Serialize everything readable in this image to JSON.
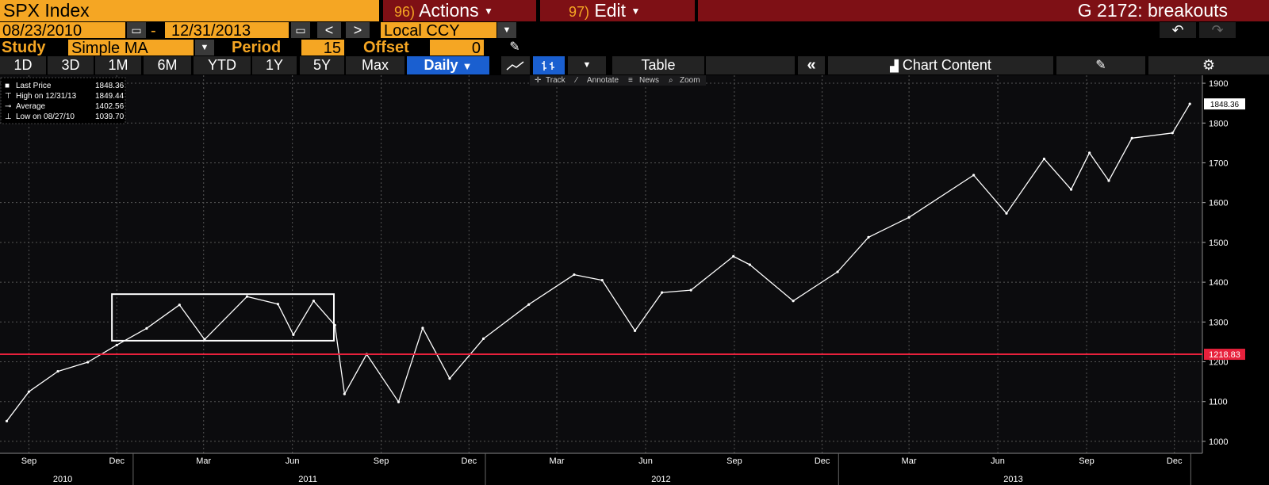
{
  "header": {
    "security": "SPX Index",
    "actions_num": "96)",
    "actions_label": "Actions",
    "edit_num": "97)",
    "edit_label": "Edit",
    "function_title": "G 2172: breakouts"
  },
  "range": {
    "start": "08/23/2010",
    "separator": "-",
    "end": "12/31/2013",
    "prev": "<",
    "next": ">",
    "currency": "Local CCY"
  },
  "study": {
    "label": "Study",
    "value": "Simple MA",
    "period_label": "Period",
    "period_value": "15",
    "offset_label": "Offset",
    "offset_value": "0"
  },
  "tabs": {
    "periods": [
      "1D",
      "3D",
      "1M",
      "6M",
      "YTD",
      "1Y",
      "5Y",
      "Max"
    ],
    "frequency": "Daily",
    "table": "Table",
    "chart_content": "Chart Content"
  },
  "chart_toolbar": [
    "Track",
    "Annotate",
    "News",
    "Zoom"
  ],
  "legend": [
    {
      "label": "Last Price",
      "value": "1848.36"
    },
    {
      "label": "High on 12/31/13",
      "value": "1849.44"
    },
    {
      "label": "Average",
      "value": "1402.56"
    },
    {
      "label": "Low on 08/27/10",
      "value": "1039.70"
    }
  ],
  "colors": {
    "accent": "#f5a623",
    "maroon": "#7e1015",
    "price_line": "#ffffff",
    "breakout_line": "#e8213c",
    "active_tab": "#1a5fd0"
  },
  "chart_data": {
    "type": "line",
    "series": [
      {
        "name": "Last Price",
        "x": [
          "2010-08-23",
          "2010-09-15",
          "2010-10-15",
          "2010-11-15",
          "2010-12-15",
          "2011-01-15",
          "2011-02-18",
          "2011-03-16",
          "2011-04-29",
          "2011-05-31",
          "2011-06-16",
          "2011-07-07",
          "2011-07-29",
          "2011-08-08",
          "2011-08-31",
          "2011-10-03",
          "2011-10-28",
          "2011-11-25",
          "2011-12-30",
          "2012-02-15",
          "2012-04-02",
          "2012-05-01",
          "2012-06-04",
          "2012-07-02",
          "2012-08-01",
          "2012-09-14",
          "2012-10-01",
          "2012-11-15",
          "2012-12-31",
          "2013-02-01",
          "2013-03-15",
          "2013-05-21",
          "2013-06-24",
          "2013-08-02",
          "2013-08-30",
          "2013-09-18",
          "2013-10-08",
          "2013-11-01",
          "2013-12-13",
          "2013-12-31"
        ],
        "values": [
          1051,
          1125,
          1176,
          1199,
          1242,
          1284,
          1343,
          1256,
          1364,
          1345,
          1268,
          1353,
          1292,
          1119,
          1219,
          1099,
          1285,
          1158,
          1258,
          1344,
          1419,
          1405,
          1278,
          1374,
          1380,
          1465,
          1444,
          1353,
          1426,
          1513,
          1563,
          1669,
          1573,
          1710,
          1633,
          1725,
          1655,
          1762,
          1775,
          1848
        ]
      }
    ],
    "hline": {
      "value": 1218.83,
      "label": "1218.83"
    },
    "breakout_box": {
      "x_start": "2010-12-10",
      "x_end": "2011-07-28",
      "y_low": 1253,
      "y_high": 1370
    },
    "last_label": "1848.36",
    "ylim": [
      970,
      1920
    ],
    "yticks": [
      1000,
      1100,
      1200,
      1300,
      1400,
      1500,
      1600,
      1700,
      1800,
      1900
    ],
    "xticks_month": [
      "Sep",
      "Dec",
      "Mar",
      "Jun",
      "Sep",
      "Dec",
      "Mar",
      "Jun",
      "Sep",
      "Dec",
      "Mar",
      "Jun",
      "Sep",
      "Dec"
    ],
    "xticks_year": [
      "2010",
      "2011",
      "2012",
      "2013"
    ],
    "grid": true
  }
}
